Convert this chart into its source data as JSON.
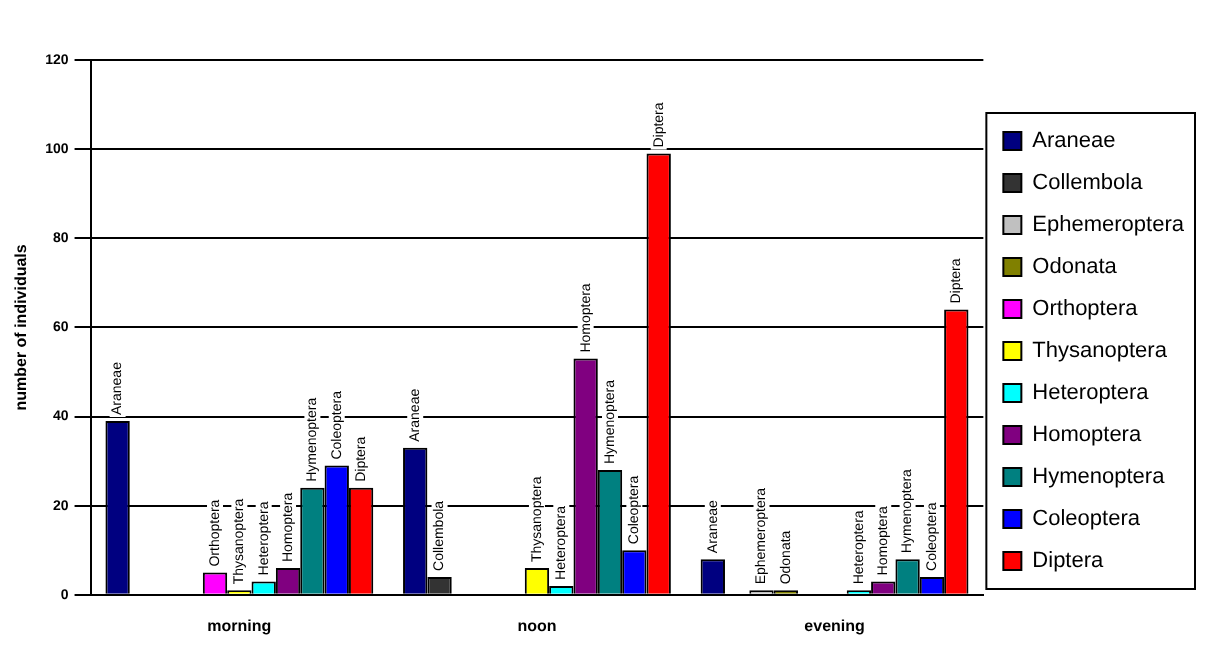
{
  "chart_data": {
    "type": "bar",
    "ylabel": "number of individuals",
    "categories": [
      "morning",
      "noon",
      "evening"
    ],
    "series": [
      {
        "name": "Araneae",
        "color": "#000080",
        "values": [
          39,
          33,
          8
        ]
      },
      {
        "name": "Collembola",
        "color": "#333333",
        "values": [
          null,
          4,
          null
        ]
      },
      {
        "name": "Ephemeroptera",
        "color": "#c0c0c0",
        "values": [
          null,
          null,
          1
        ]
      },
      {
        "name": "Odonata",
        "color": "#808000",
        "values": [
          null,
          null,
          1
        ]
      },
      {
        "name": "Orthoptera",
        "color": "#ff00ff",
        "values": [
          5,
          null,
          null
        ]
      },
      {
        "name": "Thysanoptera",
        "color": "#ffff00",
        "values": [
          1,
          6,
          null
        ]
      },
      {
        "name": "Heteroptera",
        "color": "#00ffff",
        "values": [
          3,
          2,
          1
        ]
      },
      {
        "name": "Homoptera",
        "color": "#800080",
        "values": [
          6,
          53,
          3
        ]
      },
      {
        "name": "Hymenoptera",
        "color": "#008080",
        "values": [
          24,
          28,
          8
        ]
      },
      {
        "name": "Coleoptera",
        "color": "#0000ff",
        "values": [
          29,
          10,
          4
        ]
      },
      {
        "name": "Diptera",
        "color": "#ff0000",
        "values": [
          24,
          99,
          64
        ]
      }
    ],
    "ylim": [
      0,
      120
    ],
    "yticks": [
      0,
      20,
      40,
      60,
      80,
      100,
      120
    ],
    "grid": "y",
    "legend": "right"
  }
}
